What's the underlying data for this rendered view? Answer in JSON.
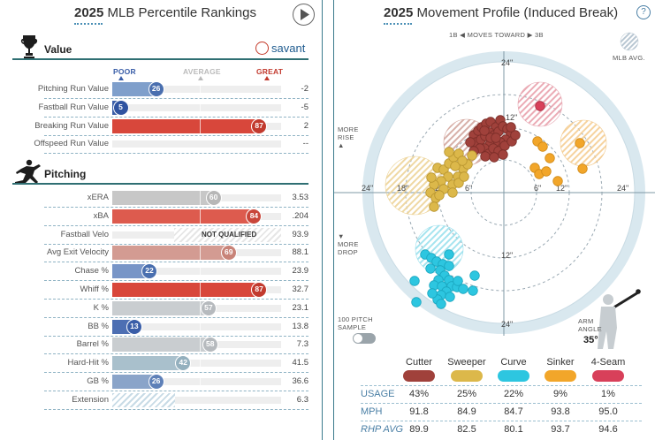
{
  "left": {
    "title_year": "2025",
    "title_text": "MLB Percentile Rankings",
    "savant": "savant",
    "scale": {
      "poor": "POOR",
      "average": "AVERAGE",
      "great": "GREAT"
    },
    "value_section": {
      "title": "Value",
      "rows": [
        {
          "name": "Pitching Run Value",
          "pct": 26,
          "value": "-2",
          "color": "#7f9fcb",
          "bubble": "#4a6faf"
        },
        {
          "name": "Fastball Run Value",
          "pct": 5,
          "value": "-5",
          "color": "#3a5ea8",
          "bubble": "#2f53a0"
        },
        {
          "name": "Breaking Run Value",
          "pct": 87,
          "value": "2",
          "color": "#d8473b",
          "bubble": "#c23a2e"
        },
        {
          "name": "Offspeed Run Value",
          "pct": null,
          "value": "--",
          "color": "#eeeeee",
          "bubble": ""
        }
      ]
    },
    "pitching_section": {
      "title": "Pitching",
      "rows": [
        {
          "name": "xERA",
          "pct": 60,
          "value": "3.53",
          "color": "#c7c7c7",
          "bubble": "#b7b7b7"
        },
        {
          "name": "xBA",
          "pct": 84,
          "value": ".204",
          "color": "#dd5b4e",
          "bubble": "#c9463a"
        },
        {
          "name": "Fastball Velo",
          "pct": null,
          "value": "93.9",
          "color": "",
          "bubble": "",
          "not_qualified": "NOT QUALIFIED"
        },
        {
          "name": "Avg Exit Velocity",
          "pct": 69,
          "value": "88.1",
          "color": "#d39b92",
          "bubble": "#c88378"
        },
        {
          "name": "Chase %",
          "pct": 22,
          "value": "23.9",
          "color": "#7895c7",
          "bubble": "#4a6faf"
        },
        {
          "name": "Whiff %",
          "pct": 87,
          "value": "32.7",
          "color": "#d8473b",
          "bubble": "#c23a2e"
        },
        {
          "name": "K %",
          "pct": 57,
          "value": "23.1",
          "color": "#c9cdd0",
          "bubble": "#b6babe"
        },
        {
          "name": "BB %",
          "pct": 13,
          "value": "13.8",
          "color": "#4d6fb3",
          "bubble": "#3a5ea8"
        },
        {
          "name": "Barrel %",
          "pct": 58,
          "value": "7.3",
          "color": "#c9cdd0",
          "bubble": "#b6babe"
        },
        {
          "name": "Hard-Hit %",
          "pct": 42,
          "value": "41.5",
          "color": "#a9c0cc",
          "bubble": "#94b0be"
        },
        {
          "name": "GB %",
          "pct": 26,
          "value": "36.6",
          "color": "#8aa4c9",
          "bubble": "#5e80b8"
        },
        {
          "name": "Extension",
          "pct": null,
          "value": "6.3",
          "color": "",
          "bubble": "",
          "hatched": true
        }
      ]
    }
  },
  "right": {
    "title_year": "2025",
    "title_text": "Movement Profile (Induced Break)",
    "help": "?",
    "direction": {
      "left": "1B",
      "middle": "MOVES TOWARD",
      "right": "3B"
    },
    "mlb_avg_label": "MLB AVG.",
    "more_rise": [
      "MORE",
      "RISE"
    ],
    "more_drop": [
      "MORE",
      "DROP"
    ],
    "ring_labels": {
      "top": "24\"",
      "mid_top": "12\"",
      "left_outer": "24\"",
      "left_18": "18\"",
      "left_12": "12\"",
      "left_6": "6\"",
      "right_6": "6\"",
      "right_12": "12\"",
      "right_outer": "24\"",
      "bottom_12": "12\"",
      "bottom_24": "24\""
    },
    "sample_label": [
      "100 PITCH",
      "SAMPLE"
    ],
    "arm_angle_label": [
      "ARM",
      "ANGLE"
    ],
    "arm_angle": "35°",
    "pitches": [
      {
        "name": "Cutter",
        "color": "#a0413b",
        "usage": "43%",
        "mph": "91.8",
        "rhp_avg": "89.9"
      },
      {
        "name": "Sweeper",
        "color": "#dcb84a",
        "usage": "25%",
        "mph": "84.9",
        "rhp_avg": "82.5"
      },
      {
        "name": "Curve",
        "color": "#2dc6e0",
        "usage": "22%",
        "mph": "84.7",
        "rhp_avg": "80.1"
      },
      {
        "name": "Sinker",
        "color": "#f2a62a",
        "usage": "9%",
        "mph": "93.8",
        "rhp_avg": "93.7"
      },
      {
        "name": "4-Seam",
        "color": "#d8405a",
        "usage": "1%",
        "mph": "95.0",
        "rhp_avg": "94.6"
      }
    ],
    "row_labels": {
      "usage": "USAGE",
      "mph": "MPH",
      "rhp_avg": "RHP AVG"
    }
  }
}
